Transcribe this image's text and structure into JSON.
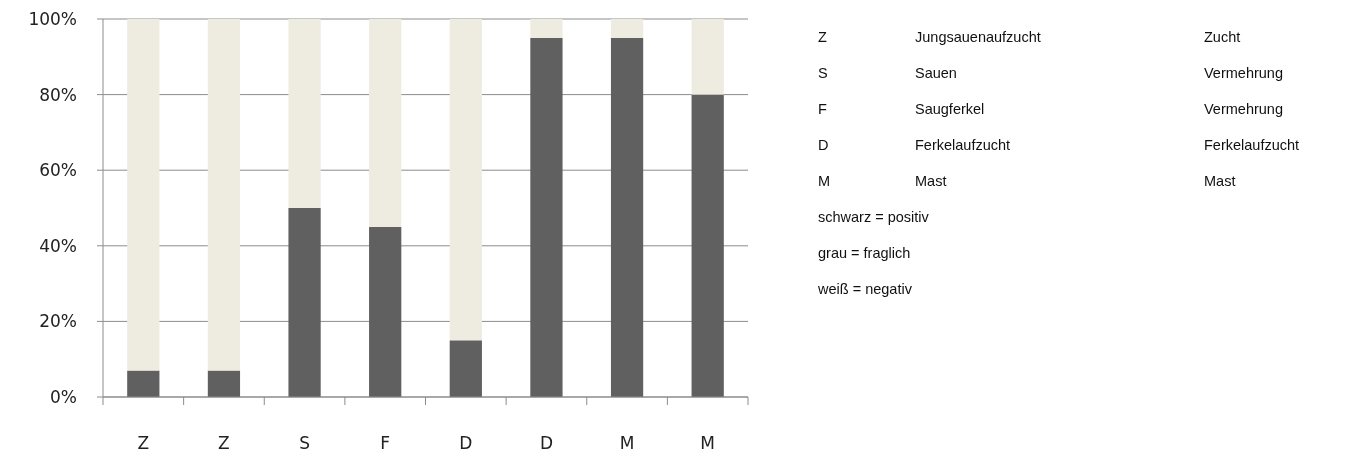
{
  "chart_data": {
    "type": "bar",
    "stacked": true,
    "categories": [
      "Z",
      "Z",
      "S",
      "F",
      "D",
      "D",
      "M",
      "M"
    ],
    "series": [
      {
        "color": "#606060",
        "values": [
          7,
          7,
          50,
          45,
          15,
          95,
          95,
          80
        ]
      },
      {
        "color": "#eeebe0",
        "values": [
          93,
          93,
          50,
          55,
          85,
          5,
          5,
          20
        ]
      }
    ],
    "ylim": [
      0,
      100
    ],
    "yticks": [
      {
        "value": 0,
        "label": "0%"
      },
      {
        "value": 20,
        "label": "20%"
      },
      {
        "value": 40,
        "label": "40%"
      },
      {
        "value": 60,
        "label": "60%"
      },
      {
        "value": 80,
        "label": "80%"
      },
      {
        "value": 100,
        "label": "100%"
      }
    ],
    "grid": "y",
    "annotations": [
      "Z",
      "Jungsauenaufzucht",
      "Zucht",
      "S",
      "Sauen",
      "Vermehrung",
      "F",
      "Saugferkel",
      "Vermehrung",
      "D",
      "Ferkelaufzucht",
      "Ferkelaufzucht",
      "M",
      "Mast",
      "Mast",
      "schwarz = positiv",
      "grau = fraglich",
      "weiß = negativ"
    ]
  }
}
